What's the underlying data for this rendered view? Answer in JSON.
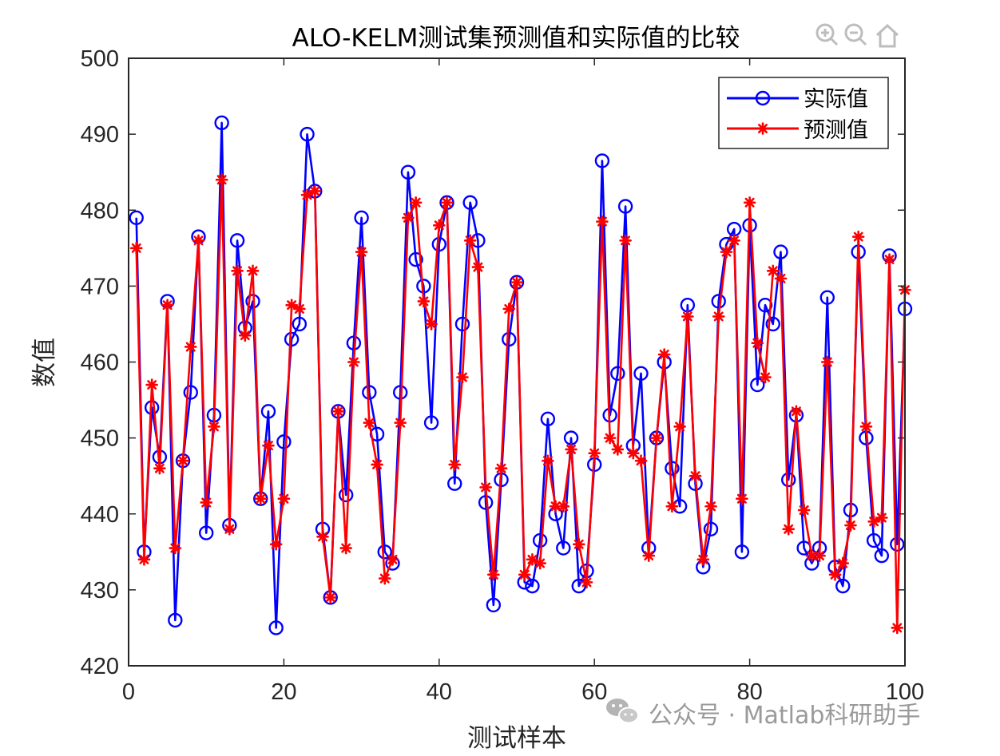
{
  "chart_data": {
    "type": "line",
    "title": "ALO-KELM测试集预测值和实际值的比较",
    "xlabel": "测试样本",
    "ylabel": "数值",
    "xlim": [
      0,
      100
    ],
    "ylim": [
      420,
      500
    ],
    "xticks": [
      "0",
      "20",
      "40",
      "60",
      "80",
      "100"
    ],
    "yticks": [
      "420",
      "430",
      "440",
      "450",
      "460",
      "470",
      "480",
      "490",
      "500"
    ],
    "legend_position": "top-right",
    "grid": false,
    "series": [
      {
        "name": "实际值",
        "color": "#0000ff",
        "marker": "circle",
        "values": [
          479,
          435,
          454,
          447.5,
          468,
          426,
          447,
          456,
          476.5,
          437.5,
          453,
          491.5,
          438.5,
          476,
          464.5,
          468,
          442,
          453.5,
          425,
          449.5,
          463,
          465,
          490,
          482.5,
          438,
          429,
          453.5,
          442.5,
          462.5,
          479,
          456,
          450.5,
          435,
          433.5,
          456,
          485,
          473.5,
          470,
          452,
          475.5,
          481,
          444,
          465,
          481,
          476,
          441.5,
          428,
          444.5,
          463,
          470.5,
          431,
          430.5,
          436.5,
          452.5,
          440,
          435.5,
          450,
          430.5,
          432.5,
          446.5,
          486.5,
          453,
          458.5,
          480.5,
          449,
          458.5,
          435.5,
          450,
          460,
          446,
          441,
          467.5,
          444,
          433,
          438,
          468,
          475.5,
          477.5,
          435,
          478,
          457,
          467.5,
          465,
          474.5,
          444.5,
          453,
          435.5,
          433.5,
          435.5,
          468.5,
          433,
          430.5,
          440.5,
          474.5,
          450,
          436.5,
          434.5,
          474,
          436,
          467
        ]
      },
      {
        "name": "预测值",
        "color": "#ff0000",
        "marker": "asterisk",
        "values": [
          475,
          434,
          457,
          446,
          467.5,
          435.5,
          447,
          462,
          476,
          441.5,
          451.5,
          484,
          438,
          472,
          463.5,
          472,
          442,
          449,
          436,
          442,
          467.5,
          467,
          482,
          482.5,
          437,
          429,
          453.5,
          435.5,
          460,
          474.5,
          452,
          446.5,
          431.5,
          434,
          452,
          479,
          481,
          468,
          465,
          478,
          481,
          446.5,
          458,
          476,
          472.5,
          443.5,
          432,
          446,
          467,
          470.5,
          432,
          434,
          433.5,
          447,
          441,
          441,
          448.5,
          436,
          431,
          448,
          478.5,
          450,
          448.5,
          476,
          448,
          447,
          434.5,
          450,
          461,
          441,
          451.5,
          466,
          445,
          434,
          441,
          466,
          474.5,
          476,
          442,
          481,
          462.5,
          458,
          472,
          471,
          438,
          453.5,
          440.5,
          434.5,
          434.5,
          460,
          432,
          433.5,
          438.5,
          476.5,
          451.5,
          439,
          439.5,
          473.5,
          425,
          469.5
        ]
      }
    ]
  },
  "toolbar": {
    "icons": [
      "zoom-in-icon",
      "zoom-out-icon",
      "home-icon"
    ]
  },
  "watermark": {
    "text": "公众号 · Matlab科研助手",
    "icon": "wechat-icon"
  }
}
